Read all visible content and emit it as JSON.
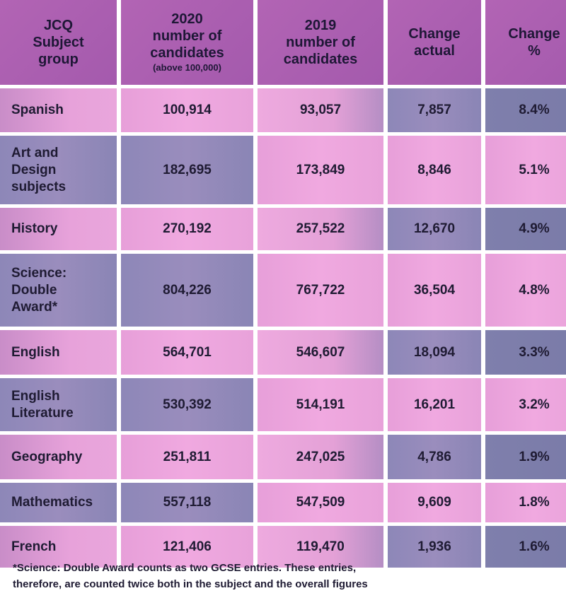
{
  "chart_data": {
    "type": "table",
    "columns": [
      {
        "lines": [
          "JCQ",
          "Subject",
          "group"
        ],
        "sub": ""
      },
      {
        "lines": [
          "2020",
          "number of",
          "candidates"
        ],
        "sub": "(above 100,000)"
      },
      {
        "lines": [
          "2019",
          "number of",
          "candidates"
        ],
        "sub": ""
      },
      {
        "lines": [
          "Change",
          "actual"
        ],
        "sub": ""
      },
      {
        "lines": [
          "Change",
          "%"
        ],
        "sub": ""
      }
    ],
    "rows": [
      {
        "subject": "Spanish",
        "y2020": "100,914",
        "y2019": "93,057",
        "change": "7,857",
        "pct": "8.4%"
      },
      {
        "subject": "Art and Design subjects",
        "y2020": "182,695",
        "y2019": "173,849",
        "change": "8,846",
        "pct": "5.1%"
      },
      {
        "subject": "History",
        "y2020": "270,192",
        "y2019": "257,522",
        "change": "12,670",
        "pct": "4.9%"
      },
      {
        "subject": "Science: Double Award*",
        "y2020": "804,226",
        "y2019": "767,722",
        "change": "36,504",
        "pct": "4.8%"
      },
      {
        "subject": "English",
        "y2020": "564,701",
        "y2019": "546,607",
        "change": "18,094",
        "pct": "3.3%"
      },
      {
        "subject": "English Literature",
        "y2020": "530,392",
        "y2019": "514,191",
        "change": "16,201",
        "pct": "3.2%"
      },
      {
        "subject": "Geography",
        "y2020": "251,811",
        "y2019": "247,025",
        "change": "4,786",
        "pct": "1.9%"
      },
      {
        "subject": "Mathematics",
        "y2020": "557,118",
        "y2019": "547,509",
        "change": "9,609",
        "pct": "1.8%"
      },
      {
        "subject": "French",
        "y2020": "121,406",
        "y2019": "119,470",
        "change": "1,936",
        "pct": "1.6%"
      }
    ]
  },
  "subject_lines": [
    [
      "Spanish"
    ],
    [
      "Art and",
      "Design",
      "subjects"
    ],
    [
      "History"
    ],
    [
      "Science:",
      "Double",
      "Award*"
    ],
    [
      "English"
    ],
    [
      "English",
      "Literature"
    ],
    [
      "Geography"
    ],
    [
      "Mathematics"
    ],
    [
      "French"
    ]
  ],
  "footnote": [
    "*Science: Double Award counts as two GCSE entries. These entries,",
    "therefore, are counted twice both in the subject and the overall figures"
  ],
  "colors": {
    "header": "#b264b4",
    "pink": "#f0a9e0",
    "slate": "#8a85b5",
    "dark": "#7a7ba8",
    "text": "#1f1b33"
  }
}
